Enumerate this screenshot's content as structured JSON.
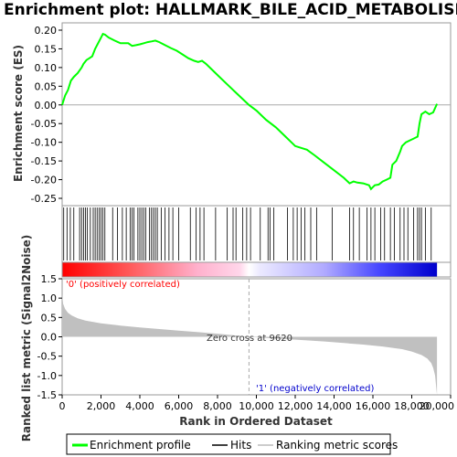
{
  "chart_data": {
    "type": "line",
    "title": "Enrichment plot: HALLMARK_BILE_ACID_METABOLISM",
    "colors": {
      "enrichment_line": "#00ff00",
      "hits": "#000000",
      "metric_fill": "#c0c0c0",
      "positive_label": "#ff0000",
      "negative_label": "#0000cc",
      "zero_line": "#aaaaaa",
      "frame": "#999999"
    },
    "es_panel": {
      "ylabel": "Enrichment score (ES)",
      "ylim": [
        -0.25,
        0.2
      ],
      "yticks": [
        "0.20",
        "0.15",
        "0.10",
        "0.05",
        "0.00",
        "-0.05",
        "-0.10",
        "-0.15",
        "-0.20",
        "-0.25"
      ],
      "ytick_values": [
        0.2,
        0.15,
        0.1,
        0.05,
        0.0,
        -0.05,
        -0.1,
        -0.15,
        -0.2,
        -0.25
      ],
      "series": [
        {
          "x": [
            0,
            150,
            300,
            450,
            600,
            800,
            1000,
            1100,
            1250,
            1400,
            1550,
            1700,
            1850,
            2000,
            2100,
            2200,
            2400,
            2700,
            3000,
            3200,
            3400,
            3600,
            3800,
            4000,
            4200,
            4400,
            4600,
            4800,
            5000,
            5300,
            5600,
            5900,
            6200,
            6500,
            6800,
            7000,
            7200,
            7400,
            8000,
            8500,
            9000,
            9620,
            10000,
            10500,
            11000,
            11500,
            11800,
            12000,
            12300,
            12600,
            13000,
            13500,
            14000,
            14500,
            14800,
            15000,
            15200,
            15500,
            15800,
            15900,
            16000,
            16100,
            16300,
            16500,
            16700,
            16900,
            17000,
            17200,
            17400,
            17500,
            17700,
            17900,
            18100,
            18300,
            18400,
            18500,
            18700,
            18900,
            19100,
            19300
          ],
          "y": [
            0.0,
            0.025,
            0.04,
            0.065,
            0.075,
            0.085,
            0.1,
            0.11,
            0.12,
            0.125,
            0.13,
            0.15,
            0.165,
            0.18,
            0.19,
            0.188,
            0.18,
            0.172,
            0.165,
            0.165,
            0.165,
            0.158,
            0.16,
            0.162,
            0.165,
            0.168,
            0.17,
            0.172,
            0.168,
            0.16,
            0.152,
            0.145,
            0.135,
            0.125,
            0.118,
            0.115,
            0.118,
            0.11,
            0.08,
            0.055,
            0.03,
            0.0,
            -0.015,
            -0.04,
            -0.06,
            -0.085,
            -0.1,
            -0.11,
            -0.115,
            -0.12,
            -0.135,
            -0.155,
            -0.175,
            -0.195,
            -0.21,
            -0.205,
            -0.208,
            -0.21,
            -0.215,
            -0.225,
            -0.22,
            -0.215,
            -0.213,
            -0.205,
            -0.2,
            -0.195,
            -0.16,
            -0.15,
            -0.125,
            -0.11,
            -0.1,
            -0.095,
            -0.09,
            -0.085,
            -0.05,
            -0.025,
            -0.018,
            -0.025,
            -0.02,
            0.003
          ]
        }
      ]
    },
    "hits": [
      80,
      250,
      420,
      600,
      900,
      1000,
      1100,
      1200,
      1300,
      1450,
      1600,
      1700,
      1800,
      1900,
      2000,
      2100,
      2200,
      2600,
      2850,
      3100,
      3300,
      3500,
      3600,
      3700,
      3900,
      4000,
      4100,
      4200,
      4300,
      4500,
      4600,
      4700,
      4800,
      4900,
      5100,
      5300,
      5500,
      5700,
      6000,
      6600,
      6900,
      7100,
      7300,
      7900,
      8500,
      8800,
      8950,
      9300,
      9500,
      9700,
      10200,
      10600,
      10700,
      10900,
      11600,
      11900,
      12100,
      12300,
      12500,
      12800,
      13100,
      13900,
      14800,
      15000,
      15300,
      15700,
      15900,
      16100,
      16400,
      16600,
      16900,
      17100,
      17400,
      17600,
      17800,
      18100,
      18300,
      18400,
      18500,
      18700,
      19000
    ],
    "ranking_bar": {
      "positive_label": "'0' (positively correlated)",
      "negative_label": "'1' (negatively correlated)",
      "zero_cross_label": "Zero cross at 9620",
      "zero_cross": 9620
    },
    "metric_panel": {
      "ylabel": "Ranked list metric (Signal2Noise)",
      "ylim": [
        -1.5,
        1.5
      ],
      "yticks": [
        "1.5",
        "1.0",
        "0.5",
        "0.0",
        "-0.5",
        "-1.0",
        "-1.5"
      ],
      "ytick_values": [
        1.5,
        1.0,
        0.5,
        0.0,
        -0.5,
        -1.0,
        -1.5
      ],
      "x": [
        0,
        50,
        150,
        300,
        500,
        800,
        1200,
        2000,
        3000,
        4000,
        5000,
        6000,
        7000,
        8000,
        9000,
        9620,
        10500,
        11500,
        12500,
        13500,
        14500,
        15500,
        16500,
        17500,
        18000,
        18500,
        18800,
        19000,
        19100,
        19200,
        19300
      ],
      "y": [
        1.1,
        0.85,
        0.72,
        0.62,
        0.55,
        0.48,
        0.42,
        0.35,
        0.29,
        0.24,
        0.2,
        0.16,
        0.12,
        0.08,
        0.03,
        0.0,
        -0.03,
        -0.06,
        -0.09,
        -0.12,
        -0.16,
        -0.2,
        -0.25,
        -0.32,
        -0.38,
        -0.47,
        -0.56,
        -0.68,
        -0.8,
        -1.0,
        -1.5
      ]
    },
    "xaxis": {
      "xlabel": "Rank in Ordered Dataset",
      "xlim": [
        0,
        20000
      ],
      "xmax_data": 19300,
      "xticks": [
        "0",
        "2,000",
        "4,000",
        "6,000",
        "8,000",
        "10,000",
        "12,000",
        "14,000",
        "16,000",
        "18,000",
        "20,000"
      ],
      "xtick_values": [
        0,
        2000,
        4000,
        6000,
        8000,
        10000,
        12000,
        14000,
        16000,
        18000,
        20000
      ]
    },
    "legend": {
      "placement": "bottom",
      "entries": [
        "Enrichment profile",
        "Hits",
        "Ranking metric scores"
      ]
    }
  }
}
